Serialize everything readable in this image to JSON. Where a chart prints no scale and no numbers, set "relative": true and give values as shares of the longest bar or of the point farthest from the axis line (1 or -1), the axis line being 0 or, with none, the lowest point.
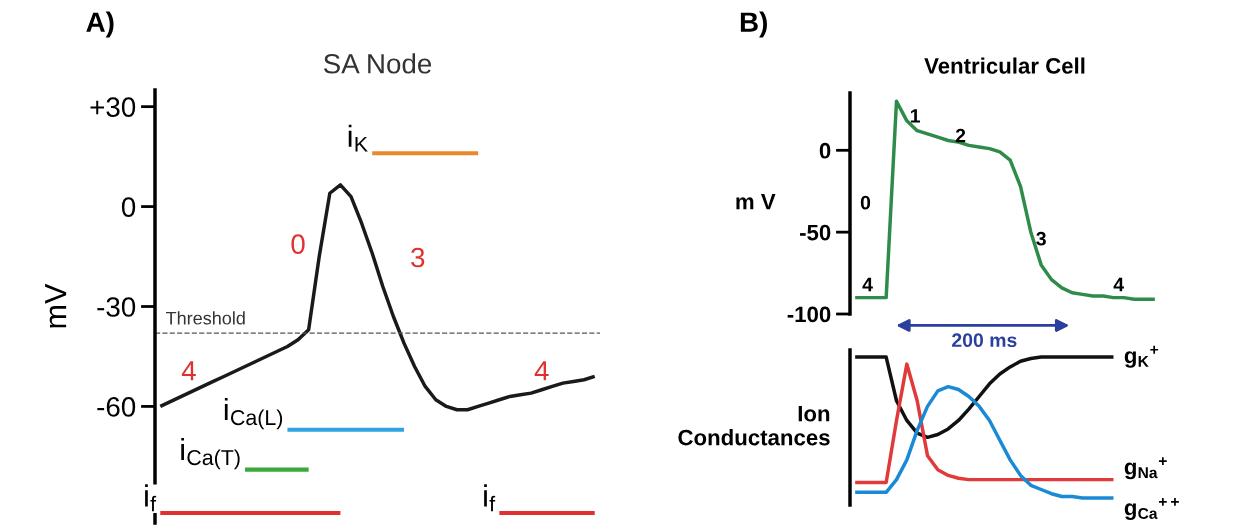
{
  "chart_data": [
    {
      "type": "line",
      "title": "SA Node",
      "ylabel": "mV",
      "annotations": [
        "A)",
        "0",
        "3",
        "4",
        "4"
      ],
      "categories": [
        null,
        null,
        null,
        null,
        null,
        null,
        null,
        null,
        null,
        null,
        null,
        null,
        null,
        null,
        null,
        null,
        null,
        null,
        null,
        null,
        null,
        null,
        null,
        null,
        null,
        null,
        null,
        null,
        null,
        null,
        null,
        null,
        null,
        null,
        null,
        null,
        null,
        null,
        null,
        null,
        null,
        null
      ],
      "ylim": [
        -95,
        35
      ],
      "yticks": [
        {
          "value": 30,
          "label": "+30"
        },
        0,
        -30,
        -60
      ],
      "tick_labels": "y",
      "grid": false,
      "ref_lines": [
        {
          "axis": "y",
          "value": -38,
          "label": "Threshold",
          "color": "#555555",
          "line_style": "dashed"
        }
      ],
      "series": [
        {
          "color": "#1a1a1a",
          "values": [
            -60,
            -58.5,
            -57,
            -55.5,
            -54,
            -52.5,
            -51,
            -49.5,
            -48,
            -46.5,
            -45,
            -43.5,
            -42,
            -40,
            -37,
            -15,
            4,
            6.5,
            3,
            -5,
            -14,
            -24,
            -33,
            -41,
            -48,
            -54,
            -58,
            -60,
            -61,
            -61,
            -60,
            -59,
            -58,
            -57,
            -56.5,
            -56,
            -55,
            -54,
            -53,
            -52.5,
            -52,
            -51
          ]
        },
        {
          "name": "i$_{K}$",
          "color": "#e8892c",
          "values": [
            null,
            null,
            null,
            null,
            null,
            null,
            null,
            null,
            null,
            null,
            null,
            null,
            null,
            null,
            null,
            null,
            null,
            null,
            null,
            null,
            16,
            16,
            16,
            16,
            16,
            16,
            16,
            16,
            16,
            16,
            16,
            null,
            null,
            null,
            null,
            null,
            null,
            null,
            null,
            null,
            null,
            null
          ]
        },
        {
          "name": "i$_{Ca(L)}$",
          "color": "#2fa3e0",
          "values": [
            null,
            null,
            null,
            null,
            null,
            null,
            null,
            null,
            null,
            null,
            null,
            null,
            -67,
            -67,
            -67,
            -67,
            -67,
            -67,
            -67,
            -67,
            -67,
            -67,
            -67,
            -67,
            null,
            null,
            null,
            null,
            null,
            null,
            null,
            null,
            null,
            null,
            null,
            null,
            null,
            null,
            null,
            null,
            null,
            null
          ]
        },
        {
          "name": "i$_{Ca(T)}$",
          "color": "#3aa83a",
          "values": [
            null,
            null,
            null,
            null,
            null,
            null,
            null,
            null,
            -79,
            -79,
            -79,
            -79,
            -79,
            -79,
            -79,
            null,
            null,
            null,
            null,
            null,
            null,
            null,
            null,
            null,
            null,
            null,
            null,
            null,
            null,
            null,
            null,
            null,
            null,
            null,
            null,
            null,
            null,
            null,
            null,
            null,
            null,
            null
          ]
        },
        {
          "name": "i$_{f}$",
          "color": "#e03030",
          "values": [
            -92,
            -92,
            -92,
            -92,
            -92,
            -92,
            -92,
            -92,
            -92,
            -92,
            -92,
            -92,
            -92,
            -92,
            -92,
            -92,
            -92,
            -92,
            null,
            null,
            null,
            null,
            null,
            null,
            null,
            null,
            null,
            null,
            null,
            null,
            null,
            null,
            -92,
            -92,
            -92,
            -92,
            -92,
            -92,
            -92,
            -92,
            -92,
            -92
          ]
        }
      ]
    },
    {
      "type": "line",
      "title": "Ventricular Cell",
      "ylabel": "m V",
      "annotations": [
        "B)",
        "0",
        "1",
        "2",
        "3",
        "4",
        "4",
        "200 ms"
      ],
      "categories": [
        null,
        null,
        null,
        null,
        null,
        null,
        null,
        null,
        null,
        null,
        null,
        null,
        null,
        null,
        null,
        null,
        null,
        null,
        null,
        null,
        null,
        null,
        null,
        null,
        null,
        null,
        null,
        null,
        null,
        null
      ],
      "ylim": [
        -100,
        35
      ],
      "yticks": [
        0,
        -50,
        -100
      ],
      "tick_labels": "y",
      "grid": false,
      "series": [
        {
          "color": "#2e8b4a",
          "values": [
            -90,
            -90,
            -90,
            -90,
            30,
            18,
            12,
            10,
            8,
            6,
            5,
            3,
            2,
            1,
            -1,
            -6,
            -22,
            -50,
            -70,
            -79,
            -84,
            -87,
            -88,
            -89,
            -89,
            -90,
            -90,
            -91,
            -91,
            -91
          ]
        }
      ]
    },
    {
      "type": "line",
      "ylabel": "Ion\nConductances",
      "relative": true,
      "tick_labels": false,
      "grid": false,
      "categories": [
        null,
        null,
        null,
        null,
        null,
        null,
        null,
        null,
        null,
        null,
        null,
        null,
        null,
        null,
        null,
        null,
        null,
        null,
        null,
        null,
        null,
        null,
        null,
        null,
        null,
        null,
        null,
        null,
        null,
        null
      ],
      "series": [
        {
          "name": "g$_{K}$$^{+}$",
          "color": "#111111",
          "values": [
            1,
            1,
            1,
            1,
            0.69,
            0.55,
            0.46,
            0.43,
            0.45,
            0.49,
            0.55,
            0.63,
            0.72,
            0.81,
            0.88,
            0.93,
            0.97,
            0.99,
            1,
            1,
            1,
            1,
            1,
            1,
            1,
            1,
            null,
            null,
            null,
            null
          ]
        },
        {
          "name": "g$_{Na}$$^{+}$",
          "color": "#e03a3a",
          "values": [
            0.11,
            0.11,
            0.11,
            0.11,
            0.55,
            0.95,
            0.69,
            0.3,
            0.2,
            0.16,
            0.14,
            0.13,
            0.13,
            0.13,
            0.13,
            0.13,
            0.13,
            0.13,
            0.13,
            0.13,
            0.13,
            0.13,
            0.13,
            0.13,
            0.13,
            0.13,
            null,
            null,
            null,
            null
          ]
        },
        {
          "name": "g$_{Ca}$$^{++}$",
          "color": "#1a8ad4",
          "values": [
            0.04,
            0.04,
            0.04,
            0.04,
            0.13,
            0.27,
            0.48,
            0.65,
            0.76,
            0.79,
            0.77,
            0.72,
            0.65,
            0.55,
            0.41,
            0.27,
            0.16,
            0.09,
            0.06,
            0.03,
            0.01,
            0.01,
            0,
            0,
            0,
            0,
            null,
            null,
            null,
            null
          ]
        }
      ]
    }
  ]
}
